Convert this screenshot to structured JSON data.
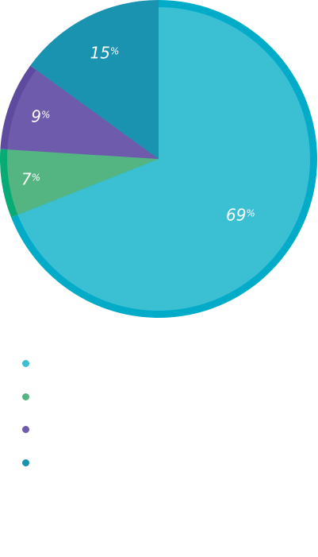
{
  "chart_data": {
    "type": "pie",
    "title": "",
    "legend": "bottom-left",
    "slices": [
      {
        "label": "",
        "value": 69,
        "display": "69",
        "unit": "%",
        "color": "#3bbfd3",
        "rim": "#02acc8"
      },
      {
        "label": "",
        "value": 7,
        "display": "7",
        "unit": "%",
        "color": "#54b582",
        "rim": "#07ab75"
      },
      {
        "label": "",
        "value": 9,
        "display": "9",
        "unit": "%",
        "color": "#6e5bab",
        "rim": "#5e4ba0"
      },
      {
        "label": "",
        "value": 15,
        "display": "15",
        "unit": "%",
        "color": "#1a93b1",
        "rim": "#1a93b1"
      }
    ]
  }
}
